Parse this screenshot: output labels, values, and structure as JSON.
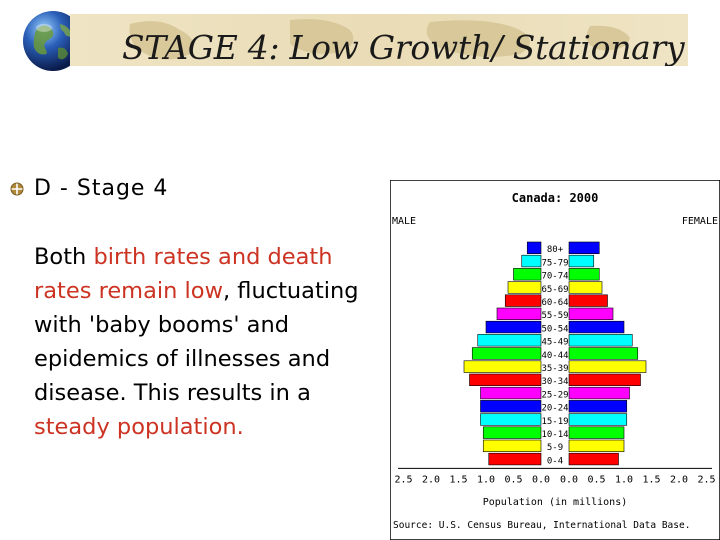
{
  "slide": {
    "title": "STAGE 4: Low Growth/ Stationary",
    "bullet": "D - Stage 4",
    "paragraph": [
      {
        "text": "Both ",
        "highlight": false
      },
      {
        "text": "birth rates and death rates remain low",
        "highlight": true
      },
      {
        "text": ", fluctuating with 'baby booms' and epidemics of illnesses and disease. This results in a ",
        "highlight": false
      },
      {
        "text": "steady population.",
        "highlight": true
      }
    ],
    "colors": {
      "highlight": "#cc3322",
      "bullet": "#8a6a2a"
    },
    "icons": [
      "globe-icon",
      "bullet-icon"
    ]
  },
  "chart_data": {
    "type": "bar",
    "orientation": "horizontal-pyramid",
    "title": "Canada: 2000",
    "left_label": "MALE",
    "right_label": "FEMALE",
    "xlabel": "Population (in millions)",
    "source": "Source: U.S. Census Bureau, International Data Base.",
    "xlim": [
      0,
      2.5
    ],
    "xticks_left": [
      "2.5",
      "2.0",
      "1.5",
      "1.0",
      "0.5",
      "0.0"
    ],
    "xticks_right": [
      "0.0",
      "0.5",
      "1.0",
      "1.5",
      "2.0",
      "2.5"
    ],
    "categories": [
      "80+",
      "75-79",
      "70-74",
      "65-69",
      "60-64",
      "55-59",
      "50-54",
      "45-49",
      "40-44",
      "35-39",
      "30-34",
      "25-29",
      "20-24",
      "15-19",
      "10-14",
      "5-9",
      "0-4"
    ],
    "series": [
      {
        "name": "MALE",
        "values": [
          0.25,
          0.35,
          0.5,
          0.6,
          0.65,
          0.8,
          1.0,
          1.15,
          1.25,
          1.4,
          1.3,
          1.1,
          1.1,
          1.1,
          1.05,
          1.05,
          0.95
        ]
      },
      {
        "name": "FEMALE",
        "values": [
          0.55,
          0.45,
          0.55,
          0.6,
          0.7,
          0.8,
          1.0,
          1.15,
          1.25,
          1.4,
          1.3,
          1.1,
          1.05,
          1.05,
          1.0,
          1.0,
          0.9
        ]
      }
    ],
    "bar_colors": [
      "#ff0000",
      "#ffff00",
      "#00ff00",
      "#00ffff",
      "#0000ff",
      "#ff00ff"
    ],
    "grid": false,
    "legend": "none"
  }
}
